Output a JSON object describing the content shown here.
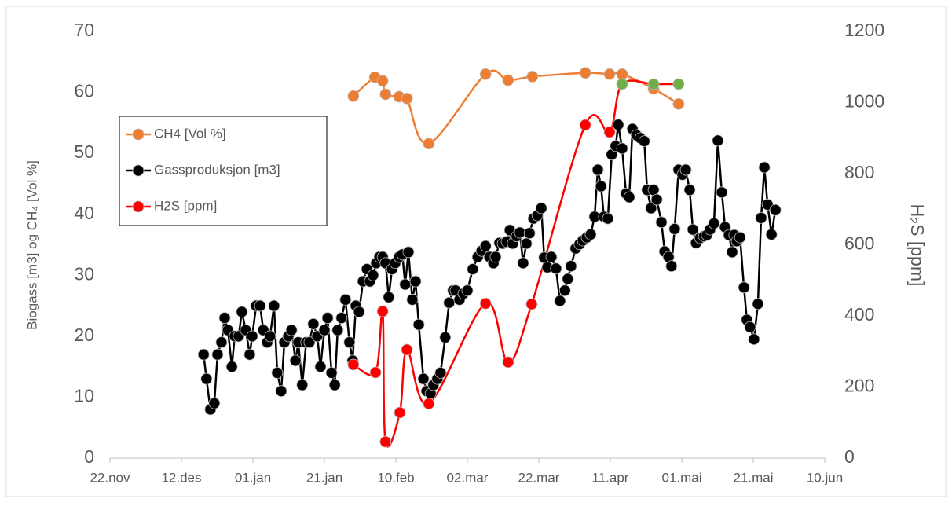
{
  "chart_data": {
    "type": "line",
    "y_label": "Biogass [m3] og CH₄ [Vol %]",
    "y2_label": "H₂S [ppm]",
    "xlim": [
      0,
      200
    ],
    "xticks": [
      {
        "value": 0,
        "label": "22.nov"
      },
      {
        "value": 20,
        "label": "12.des"
      },
      {
        "value": 40,
        "label": "01.jan"
      },
      {
        "value": 60,
        "label": "21.jan"
      },
      {
        "value": 80,
        "label": "10.feb"
      },
      {
        "value": 100,
        "label": "02.mar"
      },
      {
        "value": 120,
        "label": "22.mar"
      },
      {
        "value": 140,
        "label": "11.apr"
      },
      {
        "value": 160,
        "label": "01.mai"
      },
      {
        "value": 180,
        "label": "21.mai"
      },
      {
        "value": 200,
        "label": "10.jun"
      }
    ],
    "ylim": [
      0,
      70
    ],
    "yticks": [
      0,
      10,
      20,
      30,
      40,
      50,
      60,
      70
    ],
    "y2lim": [
      0,
      1200
    ],
    "y2ticks": [
      0,
      200,
      400,
      600,
      800,
      1000,
      1200
    ],
    "grid": false,
    "legend": "left",
    "series": [
      {
        "name": "CH4 [Vol %]",
        "color": "#ed7d31",
        "smooth": true,
        "x": [
          68.1,
          74.1,
          76.3,
          77.1,
          80.9,
          83.1,
          89.2,
          105.1,
          111.4,
          118.2,
          133.0,
          139.8,
          143.3,
          152.1,
          159.1
        ],
        "values": [
          59.4,
          62.5,
          61.9,
          59.7,
          59.3,
          59.0,
          51.6,
          63.0,
          62.0,
          62.6,
          63.2,
          63.0,
          63.0,
          60.6,
          58.1
        ]
      },
      {
        "name": "Gassproduksjon [m3]",
        "color": "#000000",
        "smooth": false,
        "x": [
          26.2,
          27.0,
          28.1,
          29.2,
          30.1,
          31.2,
          32.1,
          33.0,
          34.1,
          34.9,
          36.0,
          36.9,
          38.0,
          39.1,
          39.8,
          40.9,
          42.0,
          42.9,
          44.0,
          44.8,
          45.9,
          46.8,
          47.9,
          48.8,
          49.9,
          50.8,
          51.9,
          52.7,
          53.8,
          54.9,
          55.8,
          56.9,
          58.0,
          58.9,
          60.0,
          60.9,
          62.0,
          62.9,
          63.7,
          64.8,
          65.9,
          67.0,
          67.9,
          68.8,
          69.7,
          70.8,
          71.9,
          72.7,
          73.6,
          74.5,
          75.4,
          76.3,
          77.1,
          78.0,
          78.9,
          79.8,
          80.9,
          81.8,
          82.6,
          83.5,
          84.6,
          85.5,
          86.4,
          87.7,
          88.6,
          89.7,
          90.5,
          91.6,
          92.5,
          93.8,
          94.9,
          96.0,
          96.7,
          97.8,
          98.9,
          100.0,
          101.5,
          102.9,
          104.0,
          105.1,
          106.2,
          107.3,
          107.9,
          109.0,
          109.9,
          111.0,
          111.9,
          112.7,
          113.8,
          114.7,
          115.6,
          116.5,
          117.4,
          118.5,
          119.6,
          120.7,
          121.5,
          122.4,
          123.5,
          124.8,
          125.9,
          127.3,
          128.1,
          129.0,
          130.3,
          131.4,
          132.3,
          133.4,
          134.5,
          135.6,
          136.5,
          137.4,
          138.2,
          139.3,
          140.4,
          141.5,
          142.2,
          143.3,
          144.4,
          145.3,
          146.2,
          147.3,
          148.4,
          149.5,
          150.3,
          151.4,
          152.1,
          153.0,
          154.3,
          155.2,
          156.3,
          157.1,
          158.0,
          159.1,
          160.2,
          161.1,
          162.2,
          163.1,
          164.0,
          165.1,
          166.2,
          167.0,
          167.9,
          169.0,
          170.1,
          171.2,
          172.1,
          173.2,
          174.1,
          174.7,
          175.4,
          176.3,
          177.4,
          178.2,
          179.1,
          180.2,
          181.3,
          182.2,
          183.1,
          184.0,
          185.1,
          186.2
        ],
        "values": [
          17,
          13,
          8,
          9,
          17,
          19,
          23,
          21,
          15,
          20,
          20,
          24,
          21,
          17,
          20,
          25,
          25,
          21,
          19,
          20,
          25,
          14,
          11,
          19,
          20,
          21,
          16,
          19,
          12,
          19,
          19,
          22,
          20,
          15,
          21,
          23,
          14,
          12,
          21,
          23,
          26,
          19,
          16,
          25,
          24,
          29,
          31,
          29,
          30,
          32,
          33,
          33,
          32,
          26.4,
          31,
          32,
          33,
          33.4,
          28.5,
          33.8,
          26,
          29,
          21.9,
          13,
          11,
          10.6,
          12,
          13,
          14,
          19.8,
          25.5,
          27.5,
          27.5,
          26,
          27,
          27.5,
          31,
          33,
          34,
          34.8,
          33,
          32,
          33,
          35.3,
          35.2,
          35.5,
          37.4,
          35.2,
          36.4,
          37,
          32,
          35.2,
          36.9,
          39.3,
          39.8,
          41,
          32.9,
          31.3,
          33,
          31.1,
          25.8,
          27.5,
          29.4,
          31.5,
          34.4,
          35.1,
          35.7,
          36.2,
          36.7,
          39.6,
          47.3,
          44.6,
          39.6,
          39.3,
          49.8,
          51.2,
          54.7,
          50.8,
          43.4,
          42.8,
          54,
          53,
          52.5,
          52,
          44,
          41,
          44,
          42.4,
          38.7,
          33.9,
          33,
          31.5,
          37.6,
          47.3,
          46.5,
          47.3,
          44,
          37.5,
          35.3,
          36.1,
          36.4,
          36.6,
          37.5,
          38.5,
          52.1,
          43.6,
          37.9,
          36.6,
          33.8,
          36.6,
          35.6,
          36.2,
          28,
          22.7,
          21.5,
          19.5,
          25.3,
          39.4,
          47.7,
          41.6,
          36.7,
          40.7
        ]
      },
      {
        "name": "H2S [ppm]",
        "color": "#ff0000",
        "smooth": true,
        "axis": "y2",
        "x": [
          68.1,
          74.3,
          76.3,
          77.1,
          81.1,
          83.1,
          89.2,
          105.1,
          111.4,
          118.0,
          133.0,
          139.8,
          143.3,
          152.1,
          159.1
        ],
        "values": [
          263,
          241,
          413,
          46,
          128,
          305,
          153,
          435,
          270,
          433,
          937,
          917,
          1052,
          1052,
          1052
        ],
        "marker_colors": [
          "#ff0000",
          "#ff0000",
          "#ff0000",
          "#ff0000",
          "#ff0000",
          "#ff0000",
          "#ff0000",
          "#ff0000",
          "#ff0000",
          "#ff0000",
          "#ff0000",
          "#ff0000",
          "#70ad47",
          "#70ad47",
          "#70ad47"
        ]
      }
    ]
  }
}
